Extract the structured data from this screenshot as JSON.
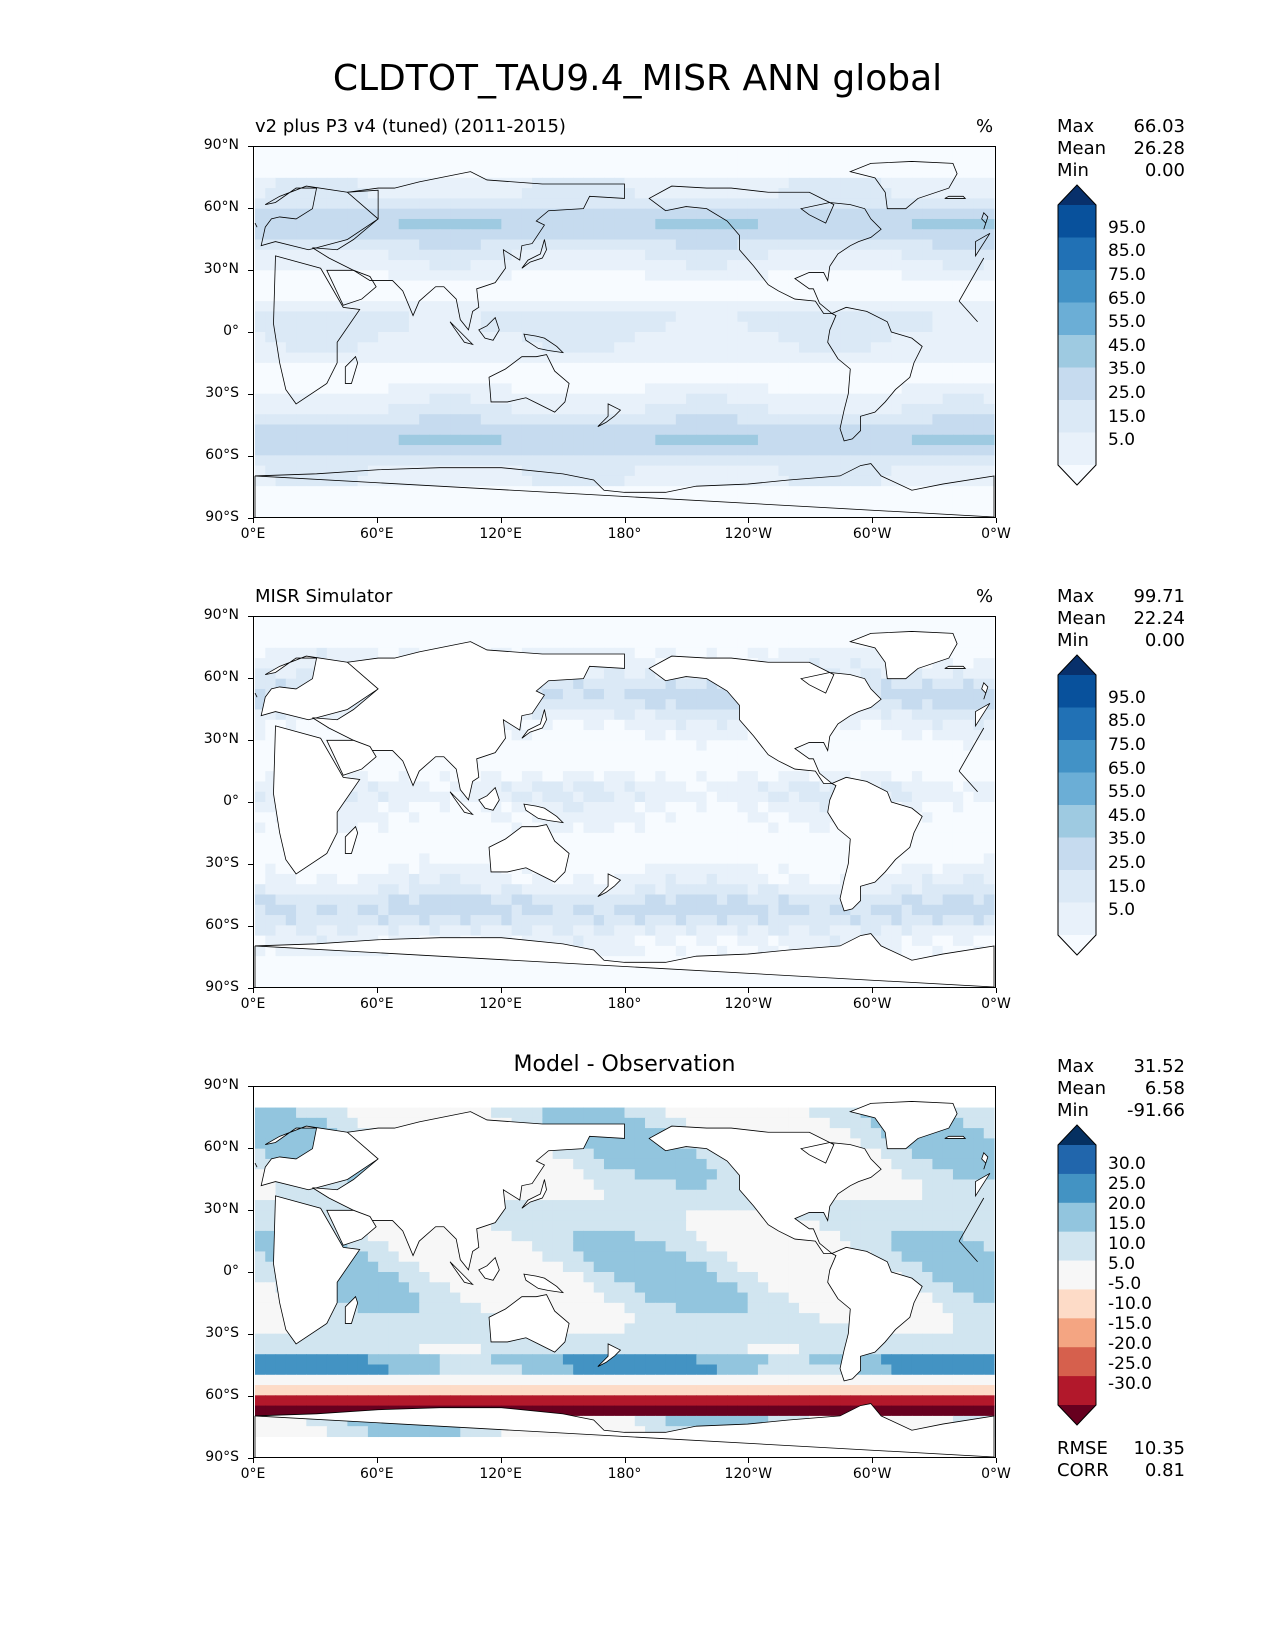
{
  "chart_data": {
    "type": "heatmap",
    "title": "CLDTOT_TAU9.4_MISR ANN global",
    "yticks": [
      "90°N",
      "60°N",
      "30°N",
      "0°",
      "30°S",
      "60°S",
      "90°S"
    ],
    "xticks": [
      "0°E",
      "60°E",
      "120°E",
      "180°",
      "120°W",
      "60°W",
      "0°W"
    ],
    "panels": [
      {
        "title": "v2 plus P3 v4 (tuned) (2011-2015)",
        "units": "%",
        "stats": {
          "max_label": "Max",
          "max": "66.03",
          "mean_label": "Mean",
          "mean": "26.28",
          "min_label": "Min",
          "min": "0.00"
        },
        "colorbar": {
          "levels": [
            "95.0",
            "85.0",
            "75.0",
            "65.0",
            "55.0",
            "45.0",
            "35.0",
            "25.0",
            "15.0",
            "5.0"
          ],
          "colors": [
            "#08306b",
            "#08519c",
            "#2171b5",
            "#4292c6",
            "#6baed6",
            "#9ecae1",
            "#c6dbef",
            "#dbe9f6",
            "#e8f1fa",
            "#f7fbff"
          ]
        }
      },
      {
        "title": "MISR Simulator",
        "units": "%",
        "stats": {
          "max_label": "Max",
          "max": "99.71",
          "mean_label": "Mean",
          "mean": "22.24",
          "min_label": "Min",
          "min": "0.00"
        },
        "colorbar": {
          "levels": [
            "95.0",
            "85.0",
            "75.0",
            "65.0",
            "55.0",
            "45.0",
            "35.0",
            "25.0",
            "15.0",
            "5.0"
          ],
          "colors": [
            "#08306b",
            "#08519c",
            "#2171b5",
            "#4292c6",
            "#6baed6",
            "#9ecae1",
            "#c6dbef",
            "#dbe9f6",
            "#e8f1fa",
            "#f7fbff"
          ]
        }
      },
      {
        "title": "Model - Observation",
        "units": "",
        "stats": {
          "max_label": "Max",
          "max": "31.52",
          "mean_label": "Mean",
          "mean": "6.58",
          "min_label": "Min",
          "min": "-91.66"
        },
        "colorbar": {
          "levels": [
            "30.0",
            "25.0",
            "20.0",
            "15.0",
            "10.0",
            "5.0",
            "-5.0",
            "-10.0",
            "-15.0",
            "-20.0",
            "-25.0",
            "-30.0"
          ],
          "colors": [
            "#053061",
            "#2166ac",
            "#4393c3",
            "#92c5de",
            "#d1e5f0",
            "#f7f7f7",
            "#fddbc7",
            "#f4a582",
            "#d6604d",
            "#b2182b",
            "#67001f"
          ]
        },
        "metrics": {
          "rmse_label": "RMSE",
          "rmse": "10.35",
          "corr_label": "CORR",
          "corr": "0.81"
        }
      }
    ]
  }
}
